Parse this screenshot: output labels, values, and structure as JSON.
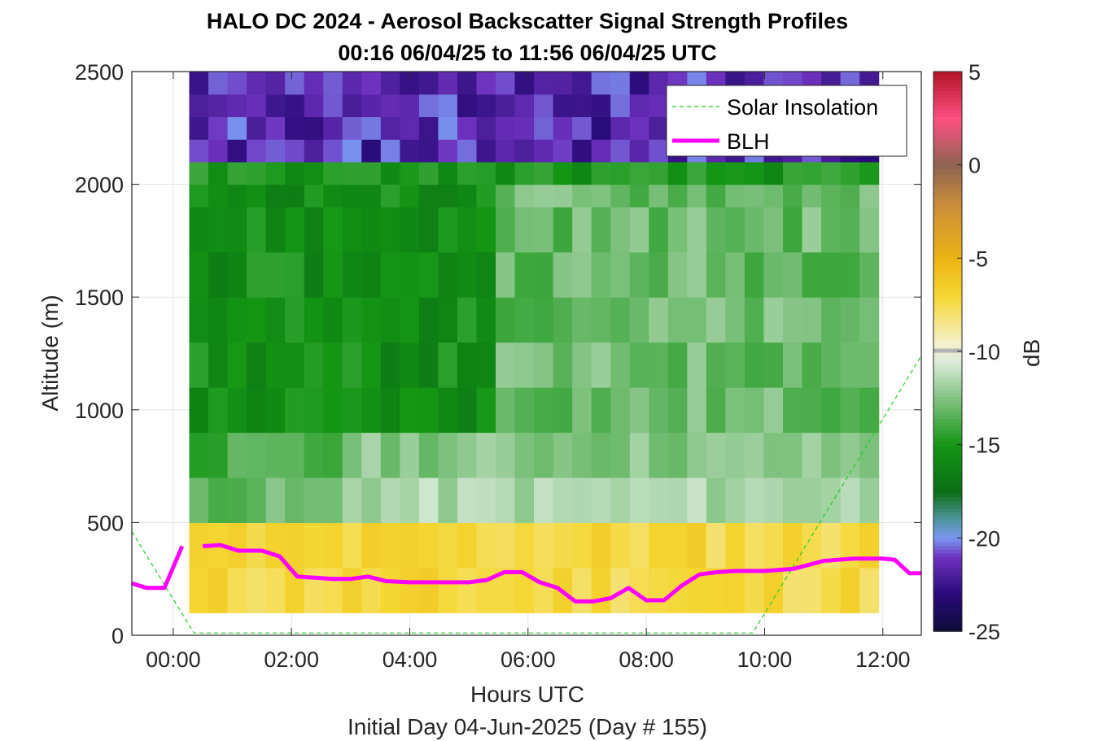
{
  "chart_data": {
    "type": "heatmap",
    "title": "HALO DC 2024 - Aerosol Backscatter Signal Strength Profiles",
    "subtitle": "00:16 06/04/25 to 11:56 06/04/25  UTC",
    "xlabel": "Hours UTC",
    "xlabel2": "Initial Day 04-Jun-2025 (Day # 155)",
    "ylabel": "Altitude (m)",
    "colorbar_label": "dB",
    "xlim": [
      -0.7,
      12.65
    ],
    "ylim": [
      0,
      2500
    ],
    "clim": [
      -25,
      5
    ],
    "x_ticks": [
      0,
      2,
      4,
      6,
      8,
      10,
      12
    ],
    "x_tick_labels": [
      "00:00",
      "02:00",
      "04:00",
      "06:00",
      "08:00",
      "10:00",
      "12:00"
    ],
    "y_ticks": [
      0,
      500,
      1000,
      1500,
      2000,
      2500
    ],
    "y_tick_labels": [
      "0",
      "500",
      "1000",
      "1500",
      "2000",
      "2500"
    ],
    "colorbar_ticks": [
      5,
      0,
      -5,
      -10,
      -15,
      -20,
      -25
    ],
    "colorbar_tick_labels": [
      "5",
      "0",
      "-5",
      "-10",
      "-15",
      "-20",
      "-25"
    ],
    "grid": true,
    "legend_position": "top-right",
    "heatmap": {
      "x_start": 0.27,
      "x_end": 11.93,
      "x_bins": 36,
      "y_edges": [
        100,
        300,
        500,
        700,
        900,
        1100,
        1300,
        1500,
        1700,
        1900,
        2000,
        2100,
        2200,
        2300,
        2400,
        2500
      ],
      "description": "Signal strength in dB: about -8 to -6 dB (yellow) below ~450 m, -12 to -10 dB (light green) up to ~900 m, -16 to -13 dB (green) between ~900 m and ~2000 m, -23 to -18 dB (purple/blue) above ~2100 m."
    },
    "series": [
      {
        "name": "Solar Insolation",
        "style": "dashed",
        "color": "#22cc22",
        "x": [
          -0.7,
          0.35,
          9.8,
          12.65
        ],
        "y": [
          460,
          10,
          10,
          1240
        ]
      },
      {
        "name": "BLH",
        "style": "solid",
        "color": "#ff00ff",
        "segments": [
          {
            "x": [
              -0.7,
              -0.45,
              -0.15,
              0.15
            ],
            "y": [
              230,
              210,
              210,
              395
            ]
          },
          {
            "x": [
              0.5,
              0.8,
              1.1,
              1.5,
              1.8,
              2.1,
              2.4,
              2.7,
              3.0,
              3.3,
              3.6,
              4.0,
              4.5,
              5.0,
              5.3,
              5.6,
              5.9,
              6.2,
              6.5,
              6.8,
              7.1,
              7.4,
              7.7,
              8.0,
              8.3,
              8.6,
              8.9,
              9.2,
              9.5,
              10.0,
              10.5,
              11.0,
              11.5,
              12.0,
              12.2,
              12.45,
              12.65
            ],
            "y": [
              395,
              400,
              375,
              375,
              350,
              260,
              255,
              250,
              250,
              260,
              240,
              235,
              235,
              235,
              245,
              280,
              280,
              235,
              210,
              150,
              150,
              165,
              210,
              155,
              155,
              220,
              270,
              280,
              285,
              285,
              295,
              330,
              340,
              340,
              335,
              275,
              275
            ]
          }
        ]
      }
    ],
    "colors": {
      "yellow": "#f2d100",
      "green": "#109010",
      "purple": "#23117a",
      "gray_pixel": "#b3b3b3",
      "blh": "#ff00ff",
      "insolation": "#22cc22"
    }
  }
}
